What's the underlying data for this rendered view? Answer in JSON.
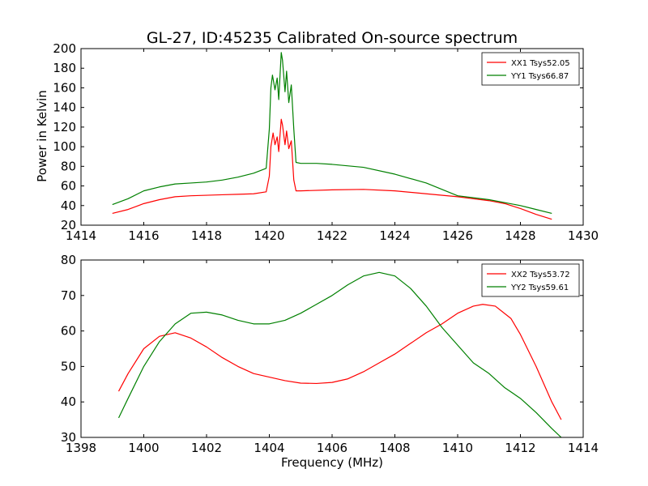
{
  "figure": {
    "title": "GL-27, ID:45235 Calibrated On-source spectrum",
    "xlabel": "Frequency (MHz)",
    "ylabel": "Power in Kelvin"
  },
  "chart_data": [
    {
      "type": "line",
      "xlim": [
        1414,
        1430
      ],
      "ylim": [
        20,
        200
      ],
      "x_ticks": [
        1414,
        1416,
        1418,
        1420,
        1422,
        1424,
        1426,
        1428,
        1430
      ],
      "y_ticks": [
        20,
        40,
        60,
        80,
        100,
        120,
        140,
        160,
        180,
        200
      ],
      "grid": false,
      "legend_position": "top-right",
      "series": [
        {
          "name": "XX1 Tsys52.05",
          "color": "#ff0000",
          "points": [
            [
              1415.0,
              32
            ],
            [
              1415.5,
              36
            ],
            [
              1416.0,
              42
            ],
            [
              1416.5,
              46
            ],
            [
              1417.0,
              49
            ],
            [
              1417.5,
              50
            ],
            [
              1418.0,
              50.5
            ],
            [
              1418.5,
              51
            ],
            [
              1419.0,
              51.5
            ],
            [
              1419.5,
              52
            ],
            [
              1419.9,
              54
            ],
            [
              1420.0,
              70
            ],
            [
              1420.05,
              100
            ],
            [
              1420.12,
              114
            ],
            [
              1420.18,
              102
            ],
            [
              1420.25,
              110
            ],
            [
              1420.3,
              95
            ],
            [
              1420.38,
              128
            ],
            [
              1420.42,
              122
            ],
            [
              1420.5,
              102
            ],
            [
              1420.55,
              116
            ],
            [
              1420.62,
              98
            ],
            [
              1420.7,
              106
            ],
            [
              1420.78,
              66
            ],
            [
              1420.85,
              55
            ],
            [
              1421.0,
              55
            ],
            [
              1422.0,
              56
            ],
            [
              1423.0,
              56.5
            ],
            [
              1424.0,
              55
            ],
            [
              1425.0,
              52
            ],
            [
              1426.0,
              49
            ],
            [
              1427.0,
              45
            ],
            [
              1427.5,
              42
            ],
            [
              1428.0,
              37
            ],
            [
              1428.5,
              31
            ],
            [
              1429.0,
              26
            ]
          ]
        },
        {
          "name": "YY1 Tsys66.87",
          "color": "#008000",
          "points": [
            [
              1415.0,
              41
            ],
            [
              1415.5,
              47
            ],
            [
              1416.0,
              55
            ],
            [
              1416.5,
              59
            ],
            [
              1417.0,
              62
            ],
            [
              1417.5,
              63
            ],
            [
              1418.0,
              64
            ],
            [
              1418.5,
              66
            ],
            [
              1419.0,
              69
            ],
            [
              1419.5,
              73
            ],
            [
              1419.9,
              78
            ],
            [
              1420.0,
              118
            ],
            [
              1420.05,
              160
            ],
            [
              1420.1,
              173
            ],
            [
              1420.18,
              158
            ],
            [
              1420.25,
              170
            ],
            [
              1420.3,
              148
            ],
            [
              1420.38,
              196
            ],
            [
              1420.42,
              188
            ],
            [
              1420.5,
              156
            ],
            [
              1420.55,
              177
            ],
            [
              1420.62,
              145
            ],
            [
              1420.7,
              163
            ],
            [
              1420.78,
              118
            ],
            [
              1420.85,
              84
            ],
            [
              1421.0,
              83
            ],
            [
              1421.5,
              83
            ],
            [
              1422.0,
              82
            ],
            [
              1423.0,
              79
            ],
            [
              1424.0,
              72
            ],
            [
              1425.0,
              63
            ],
            [
              1426.0,
              50
            ],
            [
              1427.0,
              46
            ],
            [
              1428.0,
              40
            ],
            [
              1428.5,
              36
            ],
            [
              1429.0,
              32
            ]
          ]
        }
      ]
    },
    {
      "type": "line",
      "xlim": [
        1398,
        1414
      ],
      "ylim": [
        30,
        80
      ],
      "x_ticks": [
        1398,
        1400,
        1402,
        1404,
        1406,
        1408,
        1410,
        1412,
        1414
      ],
      "y_ticks": [
        30,
        40,
        50,
        60,
        70,
        80
      ],
      "grid": false,
      "legend_position": "top-right",
      "series": [
        {
          "name": "XX2 Tsys53.72",
          "color": "#ff0000",
          "points": [
            [
              1399.2,
              43
            ],
            [
              1399.5,
              48
            ],
            [
              1400.0,
              55
            ],
            [
              1400.5,
              58.5
            ],
            [
              1401.0,
              59.5
            ],
            [
              1401.5,
              58
            ],
            [
              1402.0,
              55.5
            ],
            [
              1402.5,
              52.5
            ],
            [
              1403.0,
              50
            ],
            [
              1403.5,
              48
            ],
            [
              1404.0,
              47
            ],
            [
              1404.5,
              46
            ],
            [
              1405.0,
              45.3
            ],
            [
              1405.5,
              45.2
            ],
            [
              1406.0,
              45.5
            ],
            [
              1406.5,
              46.5
            ],
            [
              1407.0,
              48.5
            ],
            [
              1407.5,
              51
            ],
            [
              1408.0,
              53.5
            ],
            [
              1408.5,
              56.5
            ],
            [
              1409.0,
              59.5
            ],
            [
              1409.5,
              62
            ],
            [
              1410.0,
              65
            ],
            [
              1410.5,
              67
            ],
            [
              1410.8,
              67.5
            ],
            [
              1411.2,
              67
            ],
            [
              1411.7,
              63.5
            ],
            [
              1412.0,
              59
            ],
            [
              1412.5,
              50
            ],
            [
              1413.0,
              40
            ],
            [
              1413.3,
              35
            ]
          ]
        },
        {
          "name": "YY2 Tsys59.61",
          "color": "#008000",
          "points": [
            [
              1399.2,
              35.5
            ],
            [
              1399.5,
              41
            ],
            [
              1400.0,
              50
            ],
            [
              1400.5,
              57
            ],
            [
              1401.0,
              62
            ],
            [
              1401.5,
              65
            ],
            [
              1402.0,
              65.3
            ],
            [
              1402.5,
              64.5
            ],
            [
              1403.0,
              63
            ],
            [
              1403.5,
              62
            ],
            [
              1404.0,
              62
            ],
            [
              1404.5,
              63
            ],
            [
              1405.0,
              65
            ],
            [
              1405.5,
              67.5
            ],
            [
              1406.0,
              70
            ],
            [
              1406.5,
              73
            ],
            [
              1407.0,
              75.5
            ],
            [
              1407.5,
              76.5
            ],
            [
              1408.0,
              75.5
            ],
            [
              1408.5,
              72
            ],
            [
              1409.0,
              67
            ],
            [
              1409.5,
              61
            ],
            [
              1410.0,
              56
            ],
            [
              1410.5,
              51
            ],
            [
              1411.0,
              48
            ],
            [
              1411.5,
              44
            ],
            [
              1412.0,
              41
            ],
            [
              1412.5,
              37
            ],
            [
              1413.0,
              32.5
            ],
            [
              1413.3,
              30
            ]
          ]
        }
      ]
    }
  ]
}
